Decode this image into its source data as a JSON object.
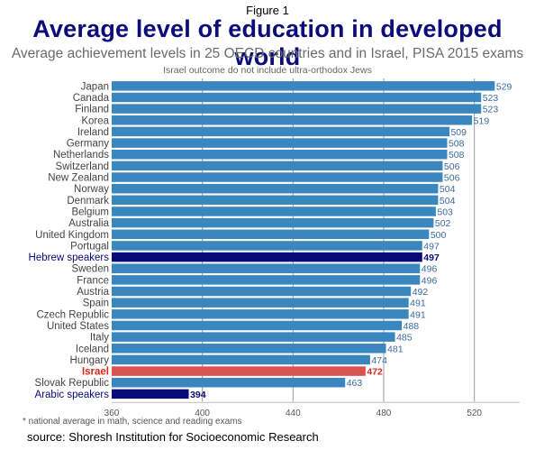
{
  "figure_label": "Figure 1",
  "footnote": "* national average in math, science and reading exams",
  "source": "source: Shoresh Institution for Socioeconomic Research",
  "colors": {
    "bar": "#3a86be",
    "highlight_dark": "#0a0a78",
    "highlight_red": "#d9534f",
    "red_text": "#d9261c",
    "label_gray": "#444444",
    "value_blue": "#3a6aa0"
  },
  "chart_data": {
    "type": "bar",
    "orientation": "horizontal",
    "title": "Average level of education in developed world",
    "subtitle": "Average achievement levels in 25 OECD countries and in Israel, PISA 2015 exams",
    "note": "Israel outcome do not include ultra-orthodox Jews",
    "xlim": [
      360,
      540
    ],
    "xticks": [
      360,
      400,
      440,
      480,
      520
    ],
    "grid": true,
    "categories": [
      "Japan",
      "Canada",
      "Finland",
      "Korea",
      "Ireland",
      "Germany",
      "Netherlands",
      "Switzerland",
      "New Zealand",
      "Norway",
      "Denmark",
      "Belgium",
      "Australia",
      "United Kingdom",
      "Portugal",
      "Hebrew speakers",
      "Sweden",
      "France",
      "Austria",
      "Spain",
      "Czech Republic",
      "United States",
      "Italy",
      "Iceland",
      "Hungary",
      "Israel",
      "Slovak Republic",
      "Arabic speakers"
    ],
    "values": [
      529,
      523,
      523,
      519,
      509,
      508,
      508,
      506,
      506,
      504,
      504,
      503,
      502,
      500,
      497,
      497,
      496,
      496,
      492,
      491,
      491,
      488,
      485,
      481,
      474,
      472,
      463,
      394
    ],
    "highlight": {
      "Hebrew speakers": "dark",
      "Israel": "red",
      "Arabic speakers": "dark"
    }
  }
}
